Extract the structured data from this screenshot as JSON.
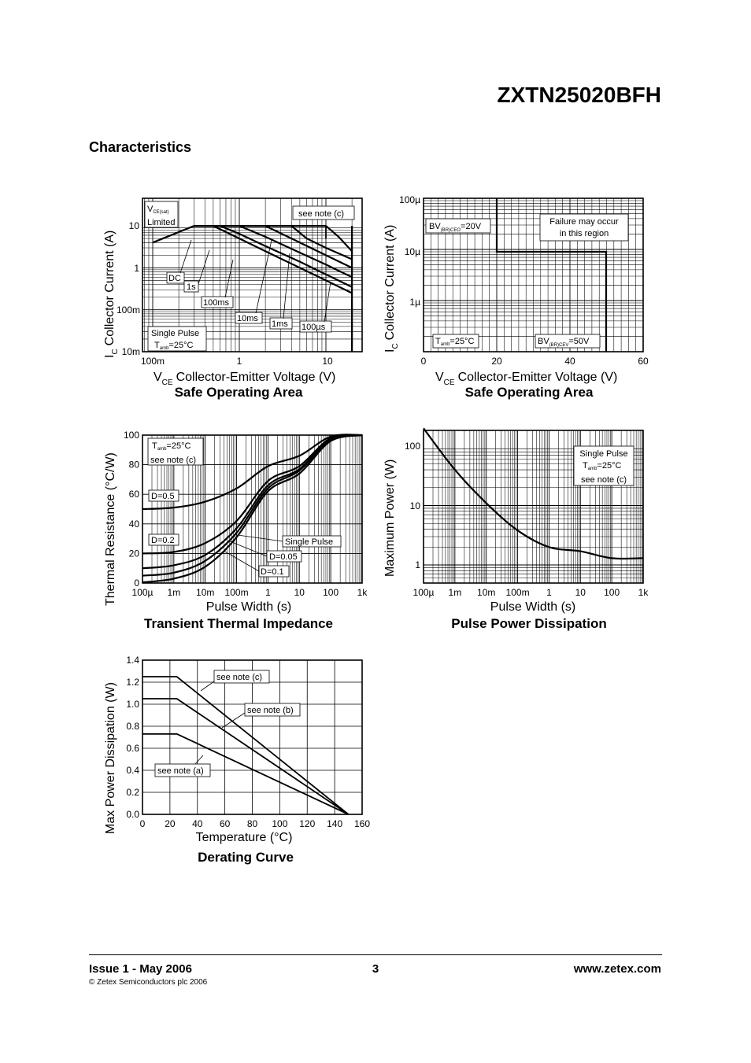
{
  "header": {
    "part_number": "ZXTN25020BFH",
    "section_title": "Characteristics"
  },
  "charts": [
    {
      "id": "soa-log",
      "title": "Safe Operating Area",
      "xlabel_sym": "V",
      "xlabel_sub": "CE",
      "xlabel": "Collector-Emitter Voltage (V)",
      "ylabel_sym": "I",
      "ylabel_sub": "C",
      "ylabel": "Collector Current (A)",
      "x_ticks": [
        "100m",
        "1",
        "10"
      ],
      "y_ticks": [
        "10",
        "1",
        "100m",
        "10m"
      ],
      "annotations": {
        "vce_sym": "V",
        "vce_sub": "CE(sat)",
        "limited": "Limited",
        "note": "see note (c)",
        "dc": "DC",
        "s1": "1s",
        "ms100": "100ms",
        "ms10": "10ms",
        "ms1": "1ms",
        "us100": "100µs",
        "pulse": "Single Pulse",
        "tamb": "T",
        "tamb_sub": "amb",
        "tamb_val": "=25°C"
      }
    },
    {
      "id": "soa-lin",
      "title": "Safe Operating Area",
      "xlabel_sym": "V",
      "xlabel_sub": "CE",
      "xlabel": "Collector-Emitter Voltage (V)",
      "ylabel_sym": "I",
      "ylabel_sub": "C",
      "ylabel": "Collector Current (A)",
      "x_ticks": [
        "0",
        "20",
        "40",
        "60"
      ],
      "y_ticks": [
        "100µ",
        "10µ",
        "1µ"
      ],
      "annotations": {
        "bv1": "BV",
        "bv1_sub": "(BR)CEO",
        "bv1_val": "=20V",
        "fail1": "Failure may occur",
        "fail2": "in this region",
        "tamb": "T",
        "tamb_sub": "amb",
        "tamb_val": "=25°C",
        "bv2": "BV",
        "bv2_sub": "(BR)CEV",
        "bv2_val": "=50V"
      }
    },
    {
      "id": "thermal",
      "title": "Transient Thermal Impedance",
      "xlabel": "Pulse Width (s)",
      "ylabel": "Thermal Resistance (°C/W)",
      "x_ticks": [
        "100µ",
        "1m",
        "10m",
        "100m",
        "1",
        "10",
        "100",
        "1k"
      ],
      "y_ticks": [
        "100",
        "80",
        "60",
        "40",
        "20",
        "0"
      ],
      "annotations": {
        "tamb": "T",
        "tamb_sub": "amb",
        "tamb_val": "=25°C",
        "note": "see note (c)",
        "d05": "D=0.5",
        "d02": "D=0.2",
        "pulse": "Single Pulse",
        "d005": "D=0.05",
        "d01": "D=0.1"
      }
    },
    {
      "id": "pulse-power",
      "title": "Pulse Power Dissipation",
      "xlabel": "Pulse Width (s)",
      "ylabel": "Maximum Power (W)",
      "x_ticks": [
        "100µ",
        "1m",
        "10m",
        "100m",
        "1",
        "10",
        "100",
        "1k"
      ],
      "y_ticks": [
        "100",
        "10",
        "1"
      ],
      "annotations": {
        "pulse": "Single Pulse",
        "tamb": "T",
        "tamb_sub": "amb",
        "tamb_val": "=25°C",
        "note": "see note (c)"
      }
    },
    {
      "id": "derating",
      "title": "Derating Curve",
      "xlabel": "Temperature (°C)",
      "ylabel": "Max Power Dissipation (W)",
      "x_ticks": [
        "0",
        "20",
        "40",
        "60",
        "80",
        "100",
        "120",
        "140",
        "160"
      ],
      "y_ticks": [
        "1.4",
        "1.2",
        "1.0",
        "0.8",
        "0.6",
        "0.4",
        "0.2",
        "0.0"
      ],
      "annotations": {
        "note_c": "see note (c)",
        "note_b": "see note (b)",
        "note_a": "see note (a)"
      }
    }
  ],
  "chart_data": [
    {
      "type": "line",
      "title": "Safe Operating Area",
      "x_scale": "log",
      "y_scale": "log",
      "xlabel": "VCE Collector-Emitter Voltage (V)",
      "ylabel": "IC Collector Current (A)",
      "xlim": [
        0.1,
        20
      ],
      "ylim": [
        0.01,
        20
      ],
      "series": [
        {
          "name": "DC",
          "x": [
            0.1,
            0.3,
            0.5,
            1,
            2,
            5,
            10,
            20
          ],
          "y": [
            4,
            10,
            10,
            5,
            2.5,
            1,
            0.5,
            0.25
          ]
        },
        {
          "name": "1s",
          "x": [
            0.3,
            0.6,
            1,
            2,
            5,
            10,
            20
          ],
          "y": [
            10,
            10,
            6.5,
            3.3,
            1.4,
            0.7,
            0.35
          ]
        },
        {
          "name": "100ms",
          "x": [
            0.3,
            1,
            2,
            5,
            10,
            20
          ],
          "y": [
            10,
            10,
            5.5,
            2.3,
            1.2,
            0.6
          ]
        },
        {
          "name": "10ms",
          "x": [
            0.3,
            2,
            5,
            10,
            20
          ],
          "y": [
            10,
            10,
            4,
            2,
            1
          ]
        },
        {
          "name": "1ms",
          "x": [
            0.3,
            4,
            6,
            10,
            20
          ],
          "y": [
            10,
            10,
            5,
            3,
            1.6
          ]
        },
        {
          "name": "100µs",
          "x": [
            0.3,
            10,
            14,
            20
          ],
          "y": [
            10,
            10,
            5.5,
            2.5
          ]
        }
      ]
    },
    {
      "type": "line",
      "title": "Safe Operating Area",
      "y_scale": "log",
      "xlabel": "VCE Collector-Emitter Voltage (V)",
      "ylabel": "IC Collector Current (A)",
      "xlim": [
        0,
        60
      ],
      "ylim": [
        1e-07,
        0.0001
      ],
      "series": [
        {
          "name": "boundary",
          "x": [
            20,
            20,
            50,
            50
          ],
          "y": [
            0.0001,
            1e-05,
            1e-05,
            1e-07
          ]
        }
      ]
    },
    {
      "type": "line",
      "title": "Transient Thermal Impedance",
      "x_scale": "log",
      "xlabel": "Pulse Width (s)",
      "ylabel": "Thermal Resistance (°C/W)",
      "xlim": [
        0.0001,
        1000
      ],
      "ylim": [
        0,
        100
      ],
      "series": [
        {
          "name": "D=0.5",
          "x": [
            0.0001,
            0.001,
            0.01,
            0.1,
            1,
            10,
            100,
            1000
          ],
          "y": [
            50,
            51,
            55,
            64,
            79,
            86,
            99,
            100
          ]
        },
        {
          "name": "D=0.2",
          "x": [
            0.0001,
            0.001,
            0.01,
            0.1,
            1,
            10,
            100,
            1000
          ],
          "y": [
            20,
            21,
            27,
            42,
            69,
            79,
            98,
            100
          ]
        },
        {
          "name": "D=0.1",
          "x": [
            0.0001,
            0.001,
            0.01,
            0.1,
            1,
            10,
            100,
            1000
          ],
          "y": [
            10,
            12,
            19,
            37,
            66,
            77,
            97,
            100
          ]
        },
        {
          "name": "D=0.05",
          "x": [
            0.0001,
            0.001,
            0.01,
            0.1,
            1,
            10,
            100,
            1000
          ],
          "y": [
            5,
            7,
            15,
            34,
            64,
            76,
            97,
            100
          ]
        },
        {
          "name": "Single Pulse",
          "x": [
            0.0001,
            0.001,
            0.01,
            0.1,
            1,
            10,
            100,
            1000
          ],
          "y": [
            0.5,
            3,
            11,
            31,
            62,
            74,
            96,
            100
          ]
        }
      ]
    },
    {
      "type": "line",
      "title": "Pulse Power Dissipation",
      "x_scale": "log",
      "y_scale": "log",
      "xlabel": "Pulse Width (s)",
      "ylabel": "Maximum Power (W)",
      "xlim": [
        0.0001,
        1000
      ],
      "ylim": [
        0.6,
        200
      ],
      "series": [
        {
          "name": "Single Pulse",
          "x": [
            0.0001,
            0.001,
            0.01,
            0.1,
            1,
            10,
            100,
            1000
          ],
          "y": [
            200,
            40,
            11,
            3.8,
            2,
            1.7,
            1.3,
            1.3
          ]
        }
      ]
    },
    {
      "type": "line",
      "title": "Derating Curve",
      "xlabel": "Temperature (°C)",
      "ylabel": "Max Power Dissipation (W)",
      "xlim": [
        0,
        160
      ],
      "ylim": [
        0,
        1.4
      ],
      "series": [
        {
          "name": "see note (c)",
          "x": [
            0,
            25,
            150
          ],
          "y": [
            1.25,
            1.25,
            0
          ]
        },
        {
          "name": "see note (b)",
          "x": [
            0,
            25,
            150
          ],
          "y": [
            1.05,
            1.05,
            0
          ]
        },
        {
          "name": "see note (a)",
          "x": [
            0,
            25,
            150
          ],
          "y": [
            0.73,
            0.73,
            0
          ]
        }
      ]
    }
  ],
  "footer": {
    "issue": "Issue 1 - May 2006",
    "page": "3",
    "website": "www.zetex.com",
    "copyright": "© Zetex Semiconductors plc 2006"
  }
}
